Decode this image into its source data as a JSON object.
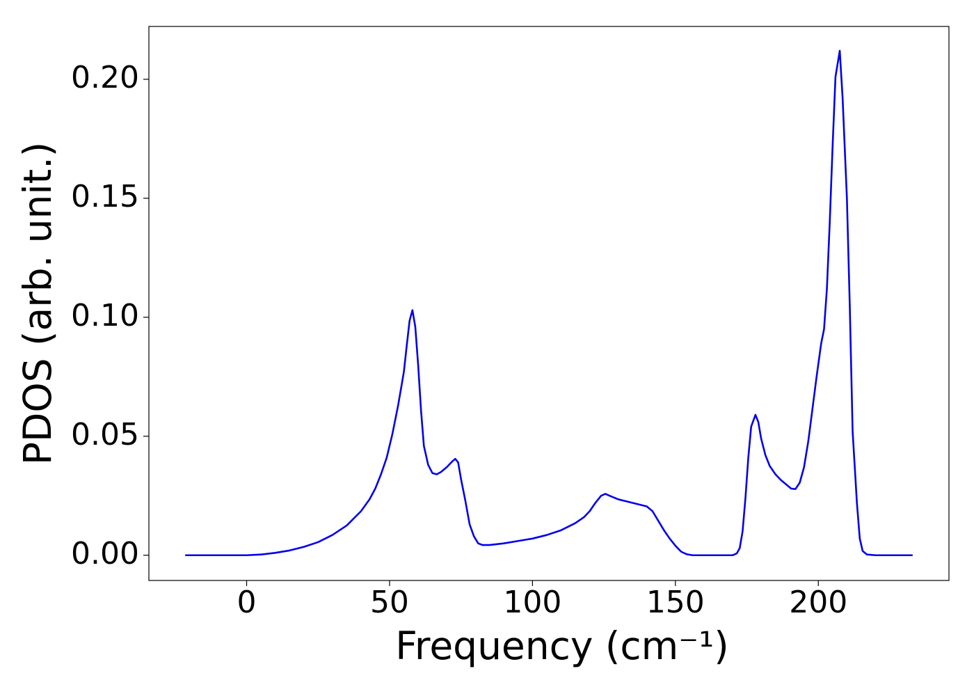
{
  "chart_data": {
    "type": "line",
    "x_label": "Frequency (cm⁻¹)",
    "y_label": "PDOS (arb. unit.)",
    "xlim": [
      -34.2,
      245.7
    ],
    "ylim": [
      -0.0106,
      0.2222
    ],
    "xticks": [
      0,
      50,
      100,
      150,
      200
    ],
    "yticks": [
      {
        "value": 0,
        "label": "0.00"
      },
      {
        "value": 0.05,
        "label": "0.05"
      },
      {
        "value": 0.1,
        "label": "0.10"
      },
      {
        "value": 0.15,
        "label": "0.15"
      },
      {
        "value": 0.2,
        "label": "0.20"
      }
    ],
    "grid": false,
    "series": [
      {
        "color": "#0000ee",
        "x": [
          -21.5,
          -10,
          0,
          5,
          10,
          15,
          20,
          25,
          30,
          35,
          40,
          43,
          45,
          47,
          49,
          51,
          53,
          55,
          56,
          57,
          58,
          59,
          60,
          61,
          62,
          63.5,
          65,
          66.5,
          68,
          70,
          72,
          73,
          74,
          75,
          76.5,
          78,
          79.5,
          81,
          82.5,
          85,
          90,
          95,
          100,
          105,
          110,
          115,
          118,
          120,
          122,
          124,
          125.5,
          127,
          130,
          135,
          140,
          142,
          144,
          146,
          148,
          150,
          152,
          154,
          156,
          170,
          171.5,
          172.5,
          173.5,
          174.5,
          175.5,
          176.5,
          178,
          179,
          180,
          181.5,
          183,
          185,
          187,
          189,
          190.5,
          192,
          193.5,
          195,
          196.5,
          198,
          199.5,
          201,
          202,
          203,
          204,
          205,
          206,
          207.5,
          208.5,
          210,
          211,
          212,
          213.5,
          214.5,
          215.5,
          217,
          220,
          233
        ],
        "values": [
          0,
          0,
          0,
          0.0003,
          0.001,
          0.002,
          0.0035,
          0.0055,
          0.0085,
          0.0125,
          0.0185,
          0.0235,
          0.028,
          0.034,
          0.041,
          0.051,
          0.063,
          0.077,
          0.088,
          0.0985,
          0.103,
          0.096,
          0.08,
          0.061,
          0.046,
          0.038,
          0.0345,
          0.034,
          0.035,
          0.037,
          0.0395,
          0.0405,
          0.039,
          0.032,
          0.023,
          0.013,
          0.008,
          0.005,
          0.0043,
          0.0043,
          0.005,
          0.006,
          0.007,
          0.0085,
          0.0105,
          0.0135,
          0.016,
          0.0185,
          0.022,
          0.025,
          0.0258,
          0.025,
          0.0235,
          0.022,
          0.0205,
          0.0185,
          0.0145,
          0.0105,
          0.007,
          0.004,
          0.0015,
          0.0004,
          0,
          0,
          0.0008,
          0.003,
          0.01,
          0.024,
          0.041,
          0.054,
          0.059,
          0.056,
          0.049,
          0.042,
          0.0375,
          0.034,
          0.0315,
          0.0295,
          0.028,
          0.0278,
          0.0305,
          0.037,
          0.048,
          0.062,
          0.076,
          0.089,
          0.095,
          0.112,
          0.14,
          0.172,
          0.201,
          0.212,
          0.192,
          0.15,
          0.105,
          0.052,
          0.022,
          0.007,
          0.0018,
          0.0003,
          0,
          0
        ]
      }
    ]
  }
}
